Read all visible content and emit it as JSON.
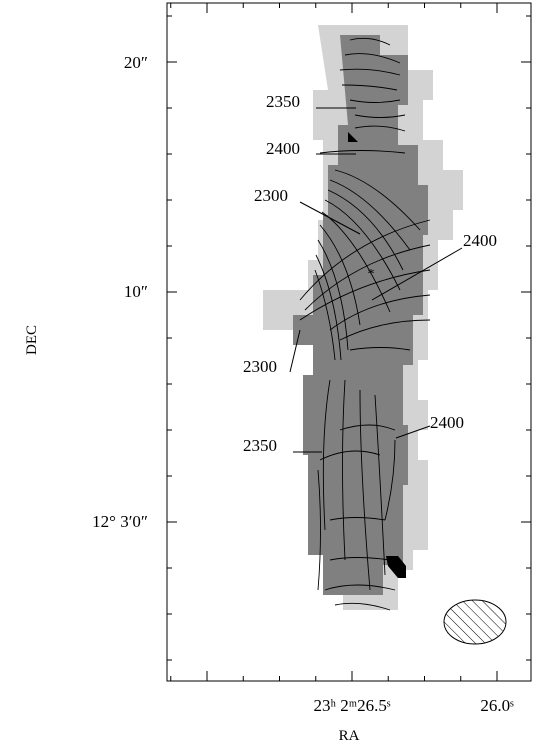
{
  "axes": {
    "x_label": "RA",
    "y_label": "DEC",
    "x_tick_labels": [
      "23ʰ 2ᵐ26.5ˢ",
      "26.0ˢ"
    ],
    "y_tick_labels": [
      "20″",
      "10″",
      "12° 3′0″"
    ]
  },
  "contour_labels": [
    "2350",
    "2400",
    "2300",
    "2400",
    "2300",
    "2350",
    "2400"
  ]
}
